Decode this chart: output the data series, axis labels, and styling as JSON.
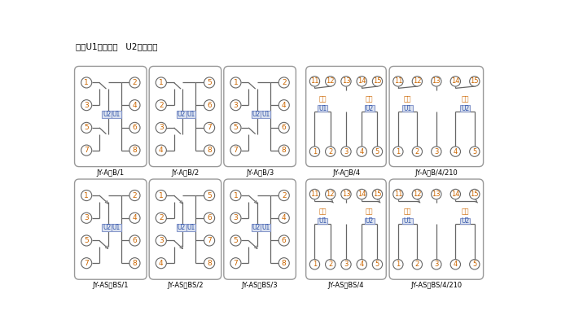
{
  "title_note": "注：U1辅助电源   U2整定电压",
  "background": "#ffffff",
  "border_color": "#999999",
  "circle_edge": "#666666",
  "line_color": "#666666",
  "orange_text": "#cc6600",
  "blue_text": "#3355aa",
  "box_fill": "#dde4f0",
  "box_edge": "#8899cc",
  "row1_labels": [
    "JY-A、B/1",
    "JY-A、B/2",
    "JY-A、B/3",
    "JY-A、B/4",
    "JY-A、B/4/210"
  ],
  "row2_labels": [
    "JY-AS、BS/1",
    "JY-AS、BS/2",
    "JY-AS、BS/3",
    "JY-AS、BS/4",
    "JY-AS、BS/4/210"
  ]
}
